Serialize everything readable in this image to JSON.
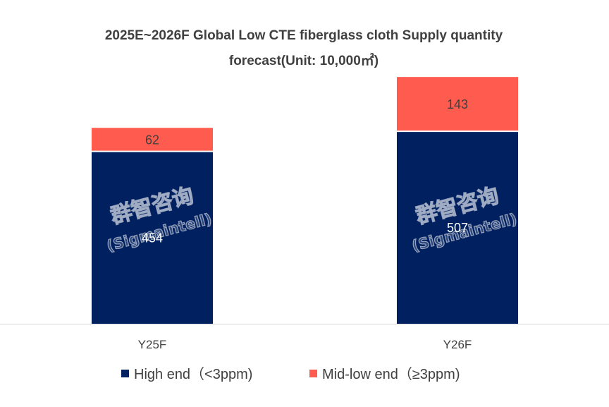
{
  "chart_data": {
    "type": "bar",
    "stacked": true,
    "title": "2025E~2026F Global Low CTE fiberglass cloth Supply quantity forecast(Unit: 10,000㎡)",
    "title_lines": [
      "2025E~2026F Global Low CTE fiberglass cloth Supply quantity",
      "forecast(Unit: 10,000㎡)"
    ],
    "categories": [
      "Y25F",
      "Y26F"
    ],
    "series": [
      {
        "name": "High end（<3ppm)",
        "color": "#002060",
        "label_color": "#ffffff",
        "values": [
          454,
          507
        ]
      },
      {
        "name": "Mid-low end（≥3ppm)",
        "color": "#FF5B4F",
        "label_color": "#404040",
        "values": [
          62,
          143
        ]
      }
    ],
    "xlabel": "",
    "ylabel": "",
    "ylim": [
      0,
      680
    ],
    "grid": false,
    "legend": "bottom",
    "watermark": {
      "line1": "群智咨询",
      "line2": "(Sigmaintell)"
    }
  }
}
